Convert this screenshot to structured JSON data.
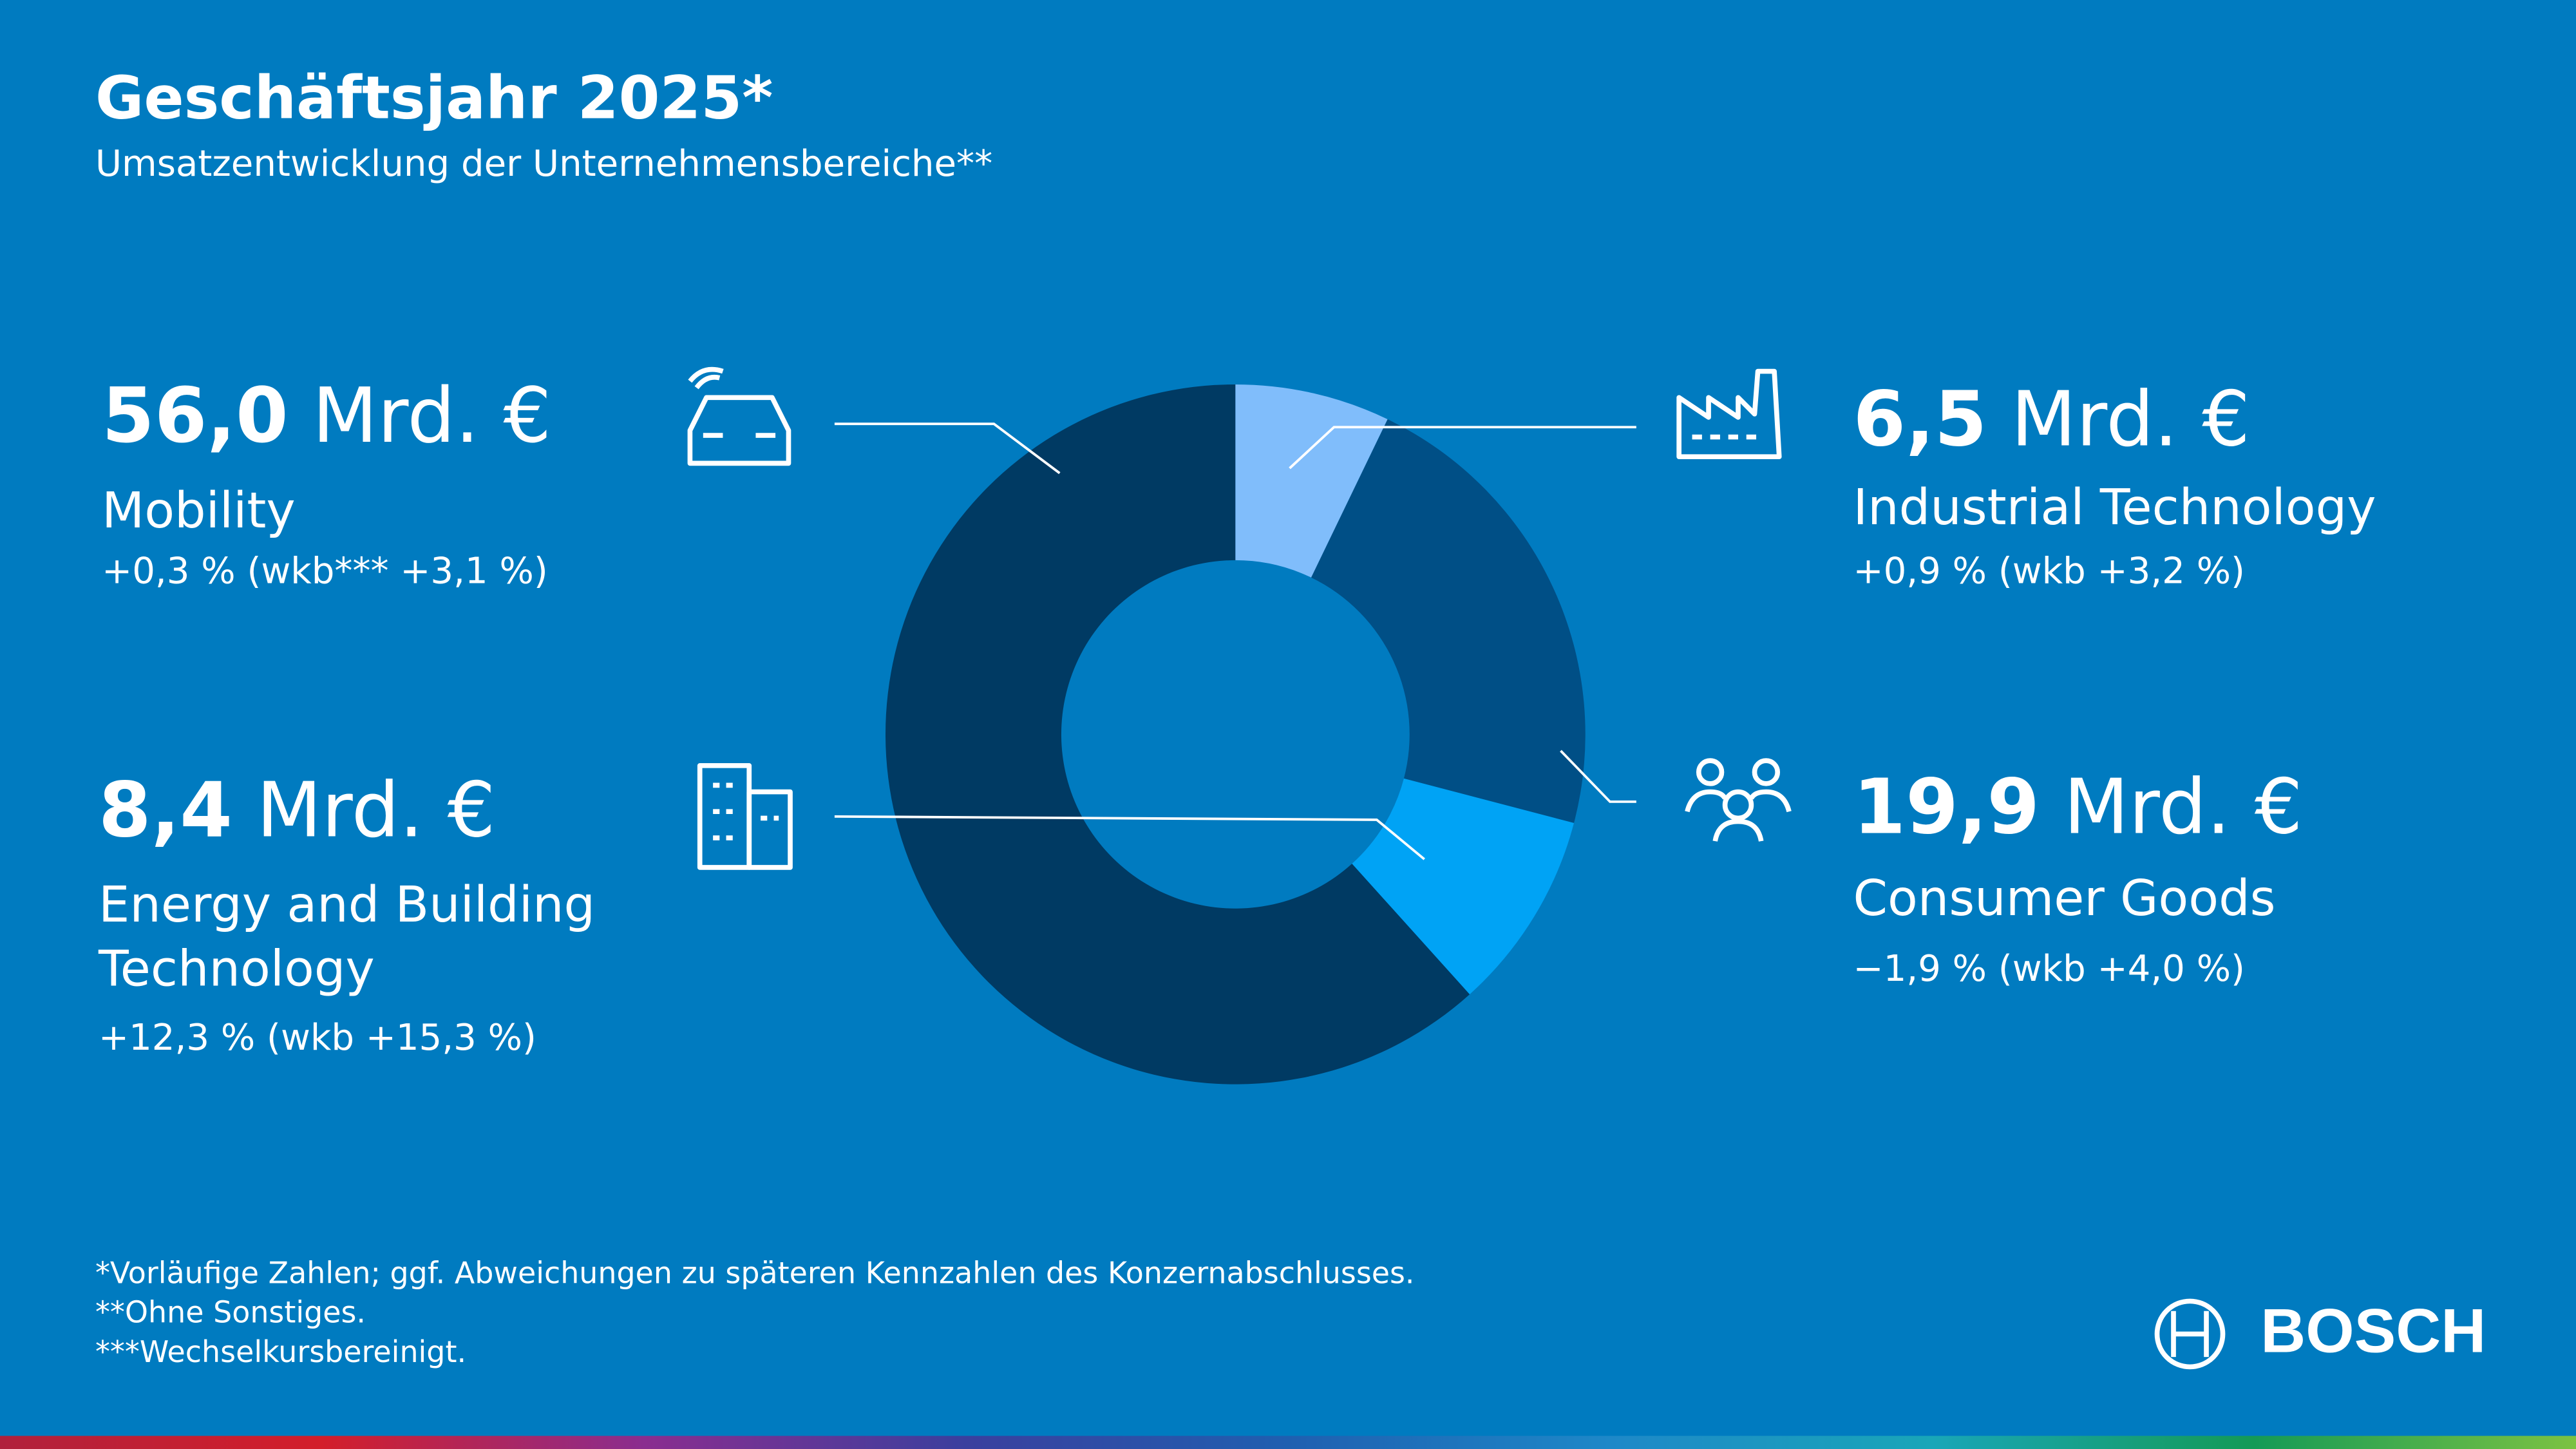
{
  "chart_data": {
    "type": "donut",
    "title": "Geschäftsjahr 2025*",
    "subtitle": "Umsatzentwicklung der Unternehmensbereiche**",
    "categories": [
      "Industrial Technology",
      "Consumer Goods",
      "Energy and Building Technology",
      "Mobility"
    ],
    "values": [
      6.5,
      19.9,
      8.4,
      56.0
    ],
    "value_labels": [
      "6,5 Mrd. €",
      "19,9 Mrd. €",
      "8,4 Mrd. €",
      "56,0 Mrd. €"
    ],
    "changes": [
      "+0,9 % (wkb +3,2 %)",
      "−1,9 % (wkb +4,0 %)",
      "+12,3 % (wkb +15,3 %)",
      "+0,3 % (wkb*** +3,1 %)"
    ],
    "colors": [
      "#80bdfb",
      "#004f86",
      "#00a3f5",
      "#003a63"
    ],
    "footnotes": [
      "*Vorläufige Zahlen; ggf. Abweichungen zu späteren Kennzahlen des Konzernabschlusses.",
      "**Ohne Sonstiges.",
      "***Wechselkursbereinigt."
    ],
    "logo": "BOSCH"
  }
}
